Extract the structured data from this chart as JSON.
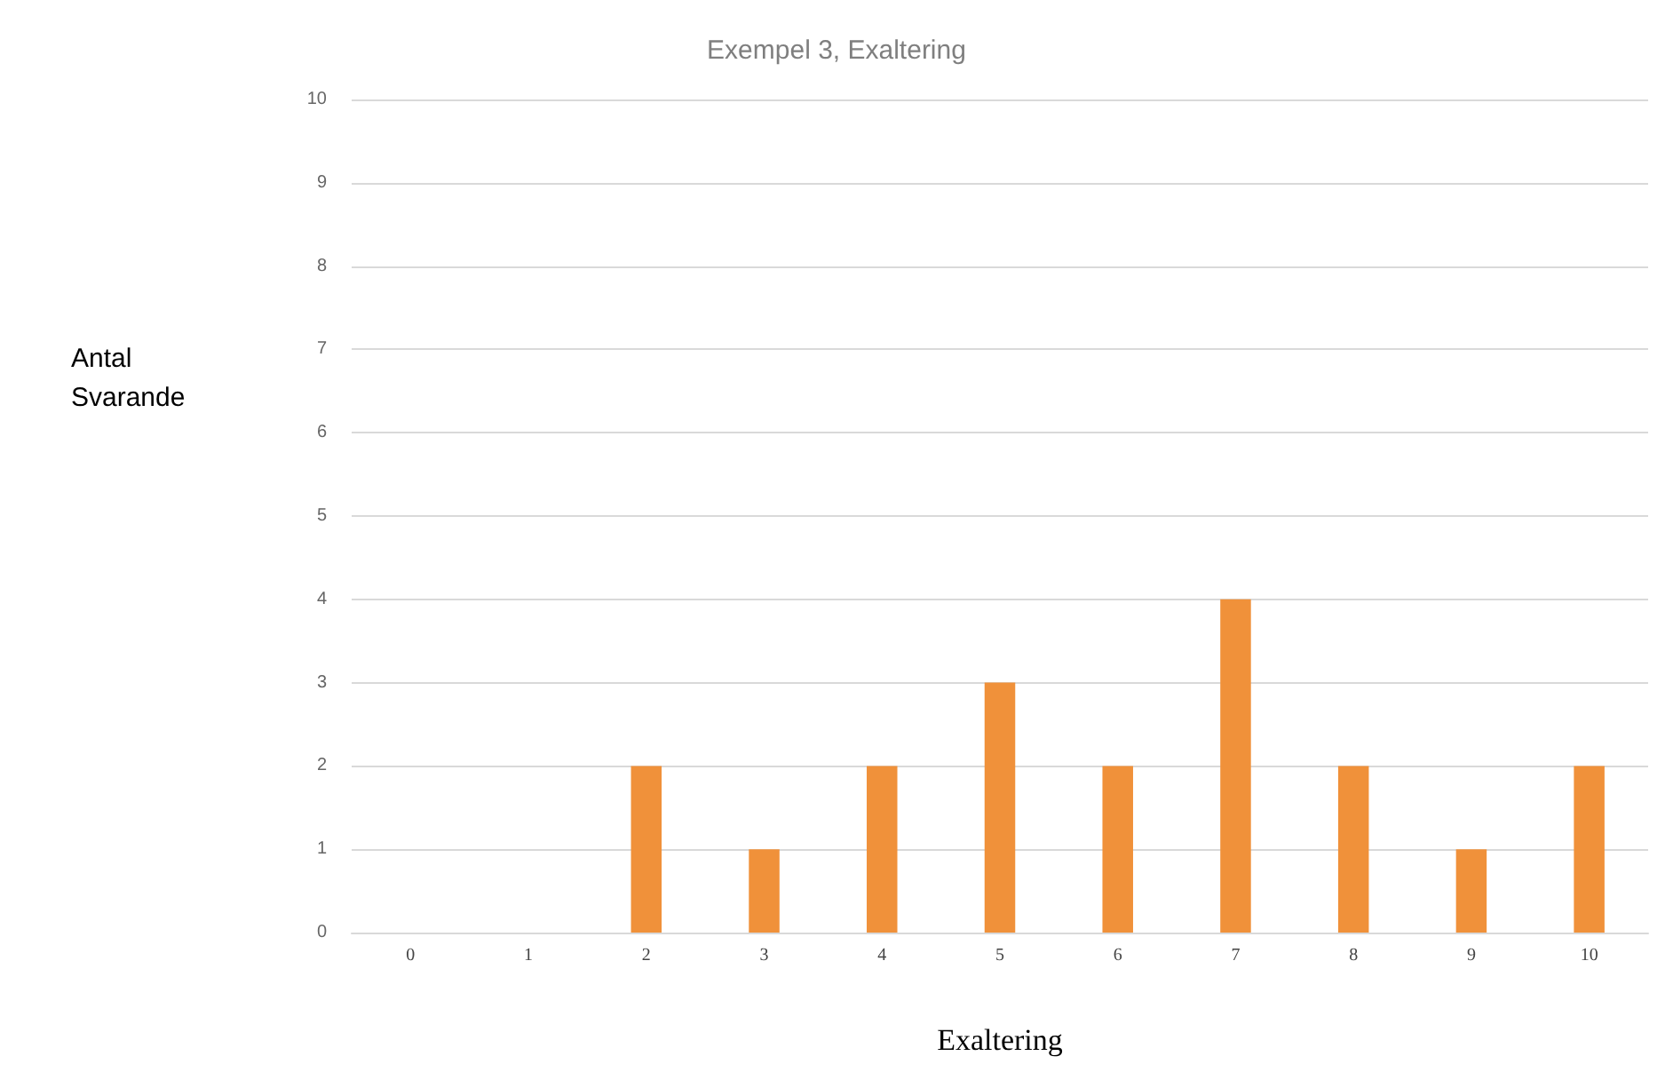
{
  "chart_data": {
    "type": "bar",
    "title": "Exempel 3, Exaltering",
    "xlabel": "Exaltering",
    "ylabel": "Antal Svarande",
    "categories": [
      "0",
      "1",
      "2",
      "3",
      "4",
      "5",
      "6",
      "7",
      "8",
      "9",
      "10"
    ],
    "values": [
      0,
      0,
      2,
      1,
      2,
      3,
      2,
      4,
      2,
      1,
      2
    ],
    "color": "#f0913a",
    "ylim": [
      0,
      10
    ],
    "yticks": [
      0,
      1,
      2,
      3,
      4,
      5,
      6,
      7,
      8,
      9,
      10
    ],
    "grid": "y"
  }
}
